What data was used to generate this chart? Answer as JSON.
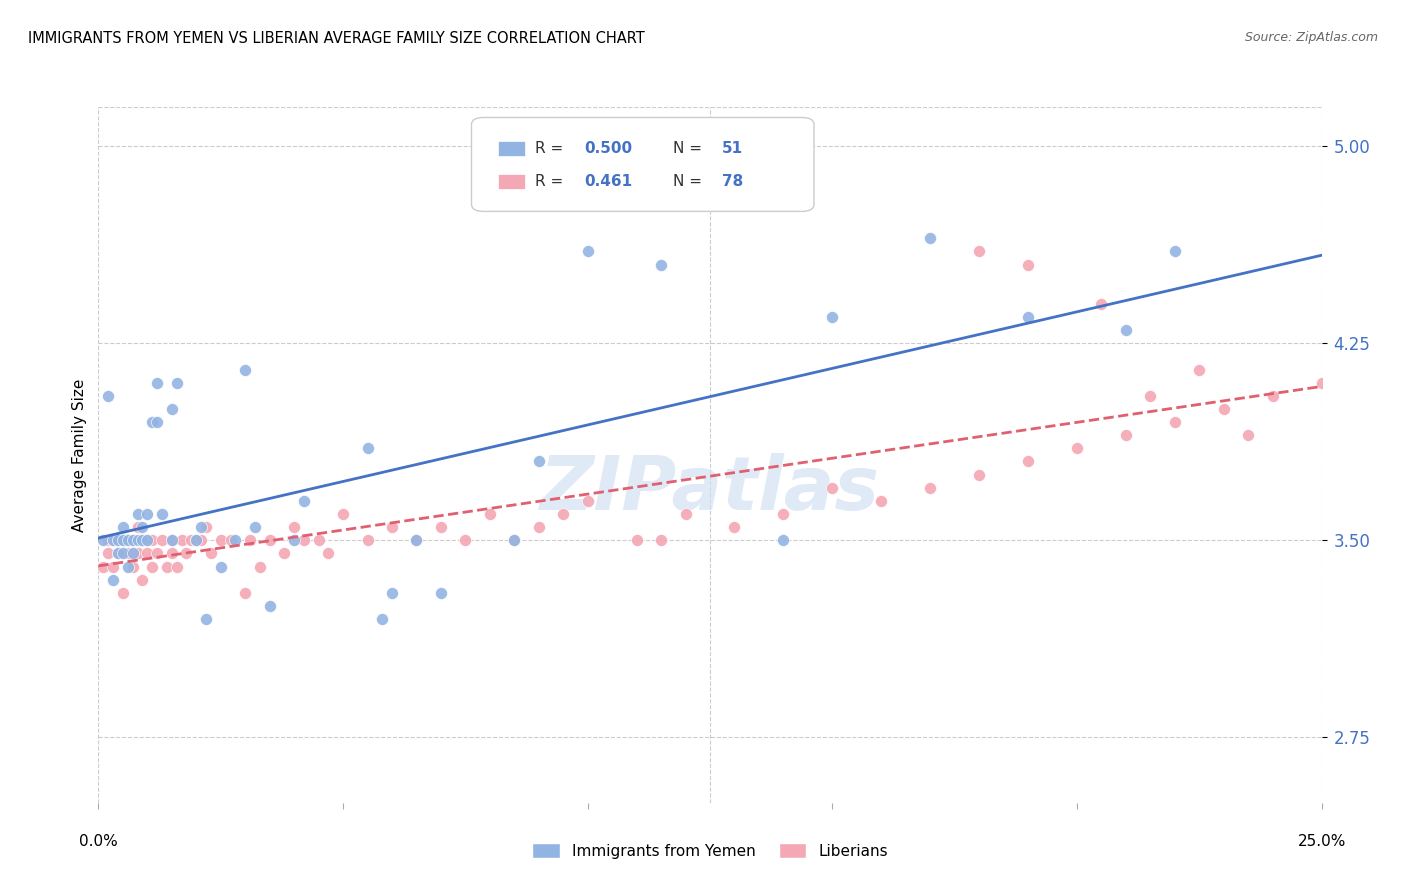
{
  "title": "IMMIGRANTS FROM YEMEN VS LIBERIAN AVERAGE FAMILY SIZE CORRELATION CHART",
  "source": "Source: ZipAtlas.com",
  "ylabel": "Average Family Size",
  "yticks": [
    2.75,
    3.5,
    4.25,
    5.0
  ],
  "xlim": [
    0.0,
    0.25
  ],
  "ylim": [
    2.5,
    5.15
  ],
  "color_blue": "#92b4e3",
  "color_pink": "#f4a7b4",
  "color_line_blue": "#4472c4",
  "color_line_pink": "#e06070",
  "color_grid": "#cccccc",
  "yemen_x": [
    0.001,
    0.002,
    0.003,
    0.003,
    0.004,
    0.004,
    0.005,
    0.005,
    0.005,
    0.006,
    0.006,
    0.007,
    0.007,
    0.008,
    0.008,
    0.009,
    0.009,
    0.01,
    0.01,
    0.011,
    0.012,
    0.012,
    0.013,
    0.015,
    0.015,
    0.016,
    0.02,
    0.021,
    0.022,
    0.025,
    0.028,
    0.03,
    0.032,
    0.035,
    0.04,
    0.042,
    0.055,
    0.058,
    0.06,
    0.065,
    0.07,
    0.085,
    0.09,
    0.1,
    0.115,
    0.14,
    0.15,
    0.17,
    0.19,
    0.21,
    0.22
  ],
  "yemen_y": [
    3.5,
    4.05,
    3.35,
    3.5,
    3.45,
    3.5,
    3.45,
    3.5,
    3.55,
    3.4,
    3.5,
    3.45,
    3.5,
    3.5,
    3.6,
    3.55,
    3.5,
    3.5,
    3.6,
    3.95,
    3.95,
    4.1,
    3.6,
    3.5,
    4.0,
    4.1,
    3.5,
    3.55,
    3.2,
    3.4,
    3.5,
    4.15,
    3.55,
    3.25,
    3.5,
    3.65,
    3.85,
    3.2,
    3.3,
    3.5,
    3.3,
    3.5,
    3.8,
    4.6,
    4.55,
    3.5,
    4.35,
    4.65,
    4.35,
    4.3,
    4.6
  ],
  "liberian_x": [
    0.001,
    0.002,
    0.002,
    0.003,
    0.003,
    0.004,
    0.004,
    0.005,
    0.005,
    0.006,
    0.006,
    0.007,
    0.007,
    0.008,
    0.008,
    0.009,
    0.009,
    0.01,
    0.01,
    0.011,
    0.011,
    0.012,
    0.013,
    0.014,
    0.015,
    0.015,
    0.016,
    0.017,
    0.018,
    0.019,
    0.02,
    0.021,
    0.022,
    0.023,
    0.025,
    0.027,
    0.03,
    0.031,
    0.033,
    0.035,
    0.038,
    0.04,
    0.042,
    0.045,
    0.047,
    0.05,
    0.055,
    0.06,
    0.065,
    0.07,
    0.075,
    0.08,
    0.085,
    0.09,
    0.095,
    0.1,
    0.11,
    0.115,
    0.12,
    0.13,
    0.14,
    0.15,
    0.16,
    0.17,
    0.18,
    0.19,
    0.2,
    0.21,
    0.22,
    0.23,
    0.24,
    0.25,
    0.18,
    0.19,
    0.205,
    0.215,
    0.225,
    0.235
  ],
  "liberian_y": [
    3.4,
    3.45,
    3.5,
    3.4,
    3.5,
    3.45,
    3.5,
    3.3,
    3.5,
    3.45,
    3.5,
    3.4,
    3.5,
    3.45,
    3.55,
    3.35,
    3.5,
    3.45,
    3.5,
    3.4,
    3.5,
    3.45,
    3.5,
    3.4,
    3.45,
    3.5,
    3.4,
    3.5,
    3.45,
    3.5,
    3.5,
    3.5,
    3.55,
    3.45,
    3.5,
    3.5,
    3.3,
    3.5,
    3.4,
    3.5,
    3.45,
    3.55,
    3.5,
    3.5,
    3.45,
    3.6,
    3.5,
    3.55,
    3.5,
    3.55,
    3.5,
    3.6,
    3.5,
    3.55,
    3.6,
    3.65,
    3.5,
    3.5,
    3.6,
    3.55,
    3.6,
    3.7,
    3.65,
    3.7,
    3.75,
    3.8,
    3.85,
    3.9,
    3.95,
    4.0,
    4.05,
    4.1,
    4.6,
    4.55,
    4.4,
    4.05,
    4.15,
    3.9
  ]
}
